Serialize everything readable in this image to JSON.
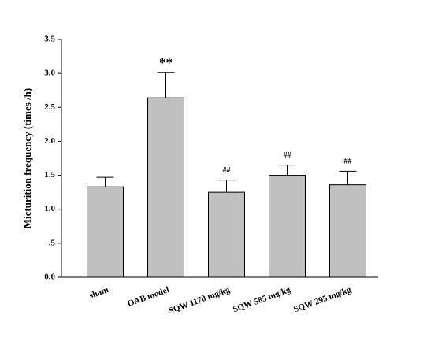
{
  "chart_data": {
    "type": "bar",
    "y_label": "Micturition frequency (times /h)",
    "categories": [
      "sham",
      "OAB model",
      "SQW 1170 mg/kg",
      "SQW 585 mg/kg",
      "SQW 295 mg/kg"
    ],
    "values": [
      1.33,
      2.64,
      1.25,
      1.5,
      1.36
    ],
    "errors": [
      0.14,
      0.37,
      0.18,
      0.15,
      0.2
    ],
    "annotations": [
      null,
      "**",
      "##",
      "##",
      "##"
    ],
    "color": "#c0c0c0",
    "ylim": [
      0,
      3.5
    ],
    "yticks": [
      {
        "value": 0,
        "label": "0.0"
      },
      {
        "value": 0.5,
        "label": ".5"
      },
      {
        "value": 1,
        "label": "1.0"
      },
      1.5,
      {
        "value": 2,
        "label": "2.0"
      },
      2.5,
      {
        "value": 3,
        "label": "3.0"
      },
      3.5
    ]
  }
}
